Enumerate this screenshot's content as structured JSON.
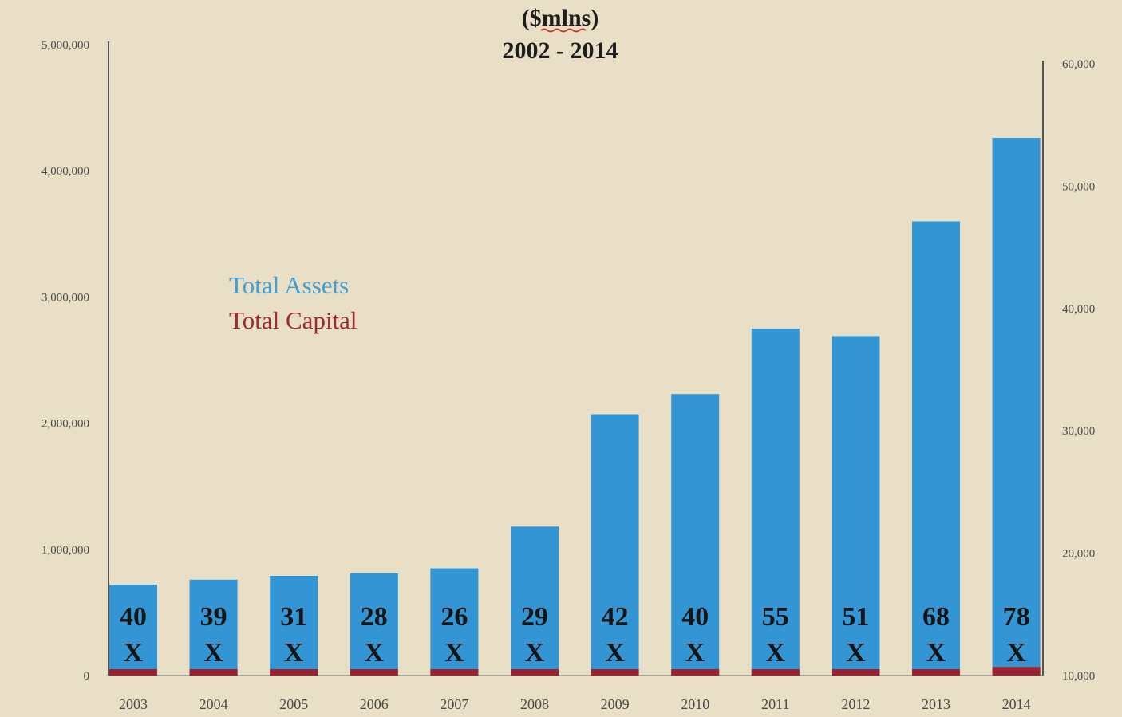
{
  "chart_data": {
    "type": "bar",
    "title": "($mlns)",
    "subtitle": "2002 - 2014",
    "categories": [
      "2003",
      "2004",
      "2005",
      "2006",
      "2007",
      "2008",
      "2009",
      "2010",
      "2011",
      "2012",
      "2013",
      "2014"
    ],
    "series": [
      {
        "name": "Total Assets",
        "axis": "left",
        "color": "#3395d3",
        "values": [
          720000,
          760000,
          790000,
          810000,
          850000,
          1180000,
          2070000,
          2230000,
          2750000,
          2690000,
          3600000,
          4260000
        ]
      },
      {
        "name": "Total Capital",
        "axis": "right",
        "color": "#9b2230",
        "values": [
          10300,
          10300,
          10300,
          10300,
          10300,
          10300,
          10300,
          10300,
          10400,
          10400,
          10400,
          10700
        ]
      }
    ],
    "leverage_labels": [
      "40",
      "39",
      "31",
      "28",
      "26",
      "29",
      "42",
      "40",
      "55",
      "51",
      "68",
      "78"
    ],
    "leverage_suffix": "X",
    "y_left": {
      "min": 0,
      "max": 5000000,
      "ticks": [
        0,
        1000000,
        2000000,
        3000000,
        4000000,
        5000000
      ],
      "tick_labels": [
        "0",
        "1,000,000",
        "2,000,000",
        "3,000,000",
        "4,000,000",
        "5,000,000"
      ]
    },
    "y_right": {
      "min": 10000,
      "max": 60000,
      "ticks": [
        10000,
        20000,
        30000,
        40000,
        50000,
        60000
      ],
      "tick_labels": [
        "10,000",
        "20,000",
        "30,000",
        "40,000",
        "50,000",
        "60,000"
      ]
    },
    "legend_position": "upper-left",
    "grid": false
  }
}
